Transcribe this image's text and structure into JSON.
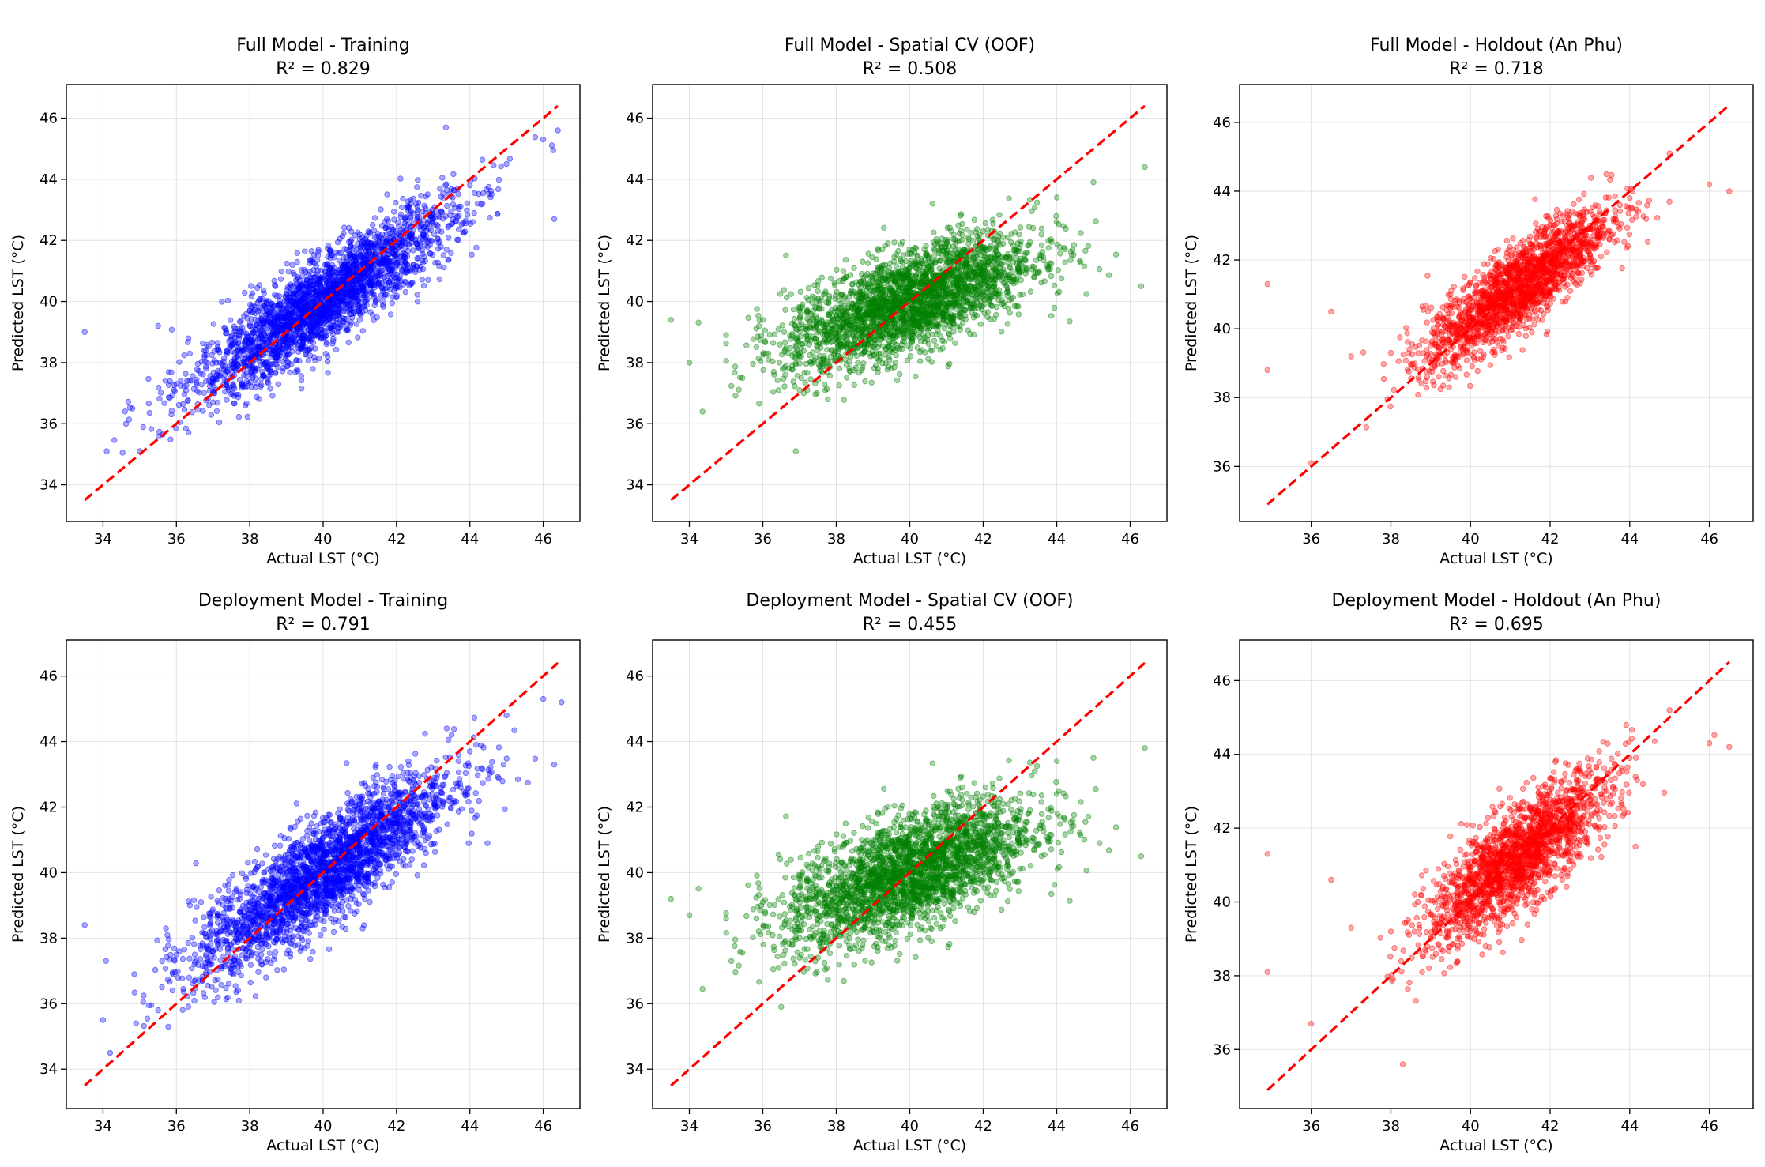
{
  "figure": {
    "rows": 2,
    "cols": 3
  },
  "chart_data": [
    {
      "type": "scatter",
      "title": "Full Model - Training",
      "subtitle": "R² = 0.829",
      "r2": 0.829,
      "xlabel": "Actual LST (°C)",
      "ylabel": "Predicted LST (°C)",
      "xlim": [
        33.0,
        47.0
      ],
      "ylim": [
        32.8,
        47.1
      ],
      "xticks": [
        34,
        36,
        38,
        40,
        42,
        44,
        46
      ],
      "yticks": [
        34,
        36,
        38,
        40,
        42,
        44,
        46
      ],
      "grid": true,
      "color": "#0000ff",
      "reference_line": {
        "label": "1:1",
        "color": "#ff0000",
        "x": [
          33.5,
          46.4
        ],
        "y": [
          33.5,
          46.4
        ]
      },
      "points_sample": [
        [
          33.5,
          39.0
        ],
        [
          34.1,
          35.1
        ],
        [
          34.6,
          36.4
        ],
        [
          35.0,
          35.1
        ],
        [
          35.5,
          39.2
        ],
        [
          36.0,
          37.3
        ],
        [
          37.0,
          36.7
        ],
        [
          38.0,
          38.4
        ],
        [
          39.0,
          39.2
        ],
        [
          40.0,
          40.0
        ],
        [
          41.0,
          40.7
        ],
        [
          42.0,
          41.4
        ],
        [
          43.0,
          42.7
        ],
        [
          44.0,
          43.8
        ],
        [
          45.0,
          44.5
        ],
        [
          46.0,
          45.3
        ],
        [
          46.3,
          42.7
        ],
        [
          46.4,
          45.6
        ]
      ],
      "n_points_approx": 6000
    },
    {
      "type": "scatter",
      "title": "Full Model - Spatial CV (OOF)",
      "subtitle": "R² = 0.508",
      "r2": 0.508,
      "xlabel": "Actual LST (°C)",
      "ylabel": "Predicted LST (°C)",
      "xlim": [
        33.0,
        47.0
      ],
      "ylim": [
        32.8,
        47.1
      ],
      "xticks": [
        34,
        36,
        38,
        40,
        42,
        44,
        46
      ],
      "yticks": [
        34,
        36,
        38,
        40,
        42,
        44,
        46
      ],
      "grid": true,
      "color": "#008000",
      "reference_line": {
        "label": "1:1",
        "color": "#ff0000",
        "x": [
          33.5,
          46.4
        ],
        "y": [
          33.5,
          46.4
        ]
      },
      "points_sample": [
        [
          33.5,
          39.4
        ],
        [
          34.0,
          38.0
        ],
        [
          35.0,
          38.9
        ],
        [
          36.0,
          39.4
        ],
        [
          36.9,
          35.1
        ],
        [
          37.0,
          37.1
        ],
        [
          38.0,
          39.2
        ],
        [
          39.0,
          39.7
        ],
        [
          40.0,
          40.1
        ],
        [
          41.0,
          40.5
        ],
        [
          42.0,
          41.0
        ],
        [
          43.0,
          41.4
        ],
        [
          44.0,
          42.6
        ],
        [
          45.0,
          43.9
        ],
        [
          46.3,
          40.5
        ],
        [
          46.4,
          44.4
        ]
      ],
      "n_points_approx": 6000
    },
    {
      "type": "scatter",
      "title": "Full Model - Holdout (An Phu)",
      "subtitle": "R² = 0.718",
      "r2": 0.718,
      "xlabel": "Actual LST (°C)",
      "ylabel": "Predicted LST (°C)",
      "xlim": [
        34.2,
        47.1
      ],
      "ylim": [
        34.4,
        47.1
      ],
      "xticks": [
        36,
        38,
        40,
        42,
        44,
        46
      ],
      "yticks": [
        36,
        38,
        40,
        42,
        44,
        46
      ],
      "grid": true,
      "color": "#ff0000",
      "reference_line": {
        "label": "1:1",
        "color": "#ff0000",
        "x": [
          34.9,
          46.5
        ],
        "y": [
          34.9,
          46.5
        ]
      },
      "points_sample": [
        [
          34.9,
          41.3
        ],
        [
          34.9,
          38.8
        ],
        [
          36.0,
          36.1
        ],
        [
          36.5,
          40.5
        ],
        [
          37.0,
          39.2
        ],
        [
          38.0,
          39.3
        ],
        [
          39.0,
          39.0
        ],
        [
          40.0,
          40.0
        ],
        [
          41.0,
          40.9
        ],
        [
          42.0,
          41.9
        ],
        [
          43.0,
          42.9
        ],
        [
          44.0,
          43.8
        ],
        [
          45.0,
          45.1
        ],
        [
          46.0,
          44.2
        ],
        [
          46.5,
          44.0
        ]
      ],
      "n_points_approx": 3500
    },
    {
      "type": "scatter",
      "title": "Deployment Model - Training",
      "subtitle": "R² = 0.791",
      "r2": 0.791,
      "xlabel": "Actual LST (°C)",
      "ylabel": "Predicted LST (°C)",
      "xlim": [
        33.0,
        47.0
      ],
      "ylim": [
        32.8,
        47.1
      ],
      "xticks": [
        34,
        36,
        38,
        40,
        42,
        44,
        46
      ],
      "yticks": [
        34,
        36,
        38,
        40,
        42,
        44,
        46
      ],
      "grid": true,
      "color": "#0000ff",
      "reference_line": {
        "label": "1:1",
        "color": "#ff0000",
        "x": [
          33.5,
          46.4
        ],
        "y": [
          33.5,
          46.4
        ]
      },
      "points_sample": [
        [
          33.5,
          38.4
        ],
        [
          34.0,
          35.5
        ],
        [
          34.9,
          35.4
        ],
        [
          35.5,
          35.8
        ],
        [
          36.0,
          37.5
        ],
        [
          37.0,
          37.6
        ],
        [
          38.0,
          38.6
        ],
        [
          39.0,
          39.4
        ],
        [
          40.0,
          40.1
        ],
        [
          41.0,
          40.8
        ],
        [
          42.0,
          41.5
        ],
        [
          43.0,
          42.8
        ],
        [
          44.0,
          43.7
        ],
        [
          45.0,
          44.8
        ],
        [
          46.0,
          45.3
        ],
        [
          46.3,
          43.3
        ],
        [
          46.5,
          45.2
        ]
      ],
      "n_points_approx": 6000
    },
    {
      "type": "scatter",
      "title": "Deployment Model - Spatial CV (OOF)",
      "subtitle": "R² = 0.455",
      "r2": 0.455,
      "xlabel": "Actual LST (°C)",
      "ylabel": "Predicted LST (°C)",
      "xlim": [
        33.0,
        47.0
      ],
      "ylim": [
        32.8,
        47.1
      ],
      "xticks": [
        34,
        36,
        38,
        40,
        42,
        44,
        46
      ],
      "yticks": [
        34,
        36,
        38,
        40,
        42,
        44,
        46
      ],
      "grid": true,
      "color": "#008000",
      "reference_line": {
        "label": "1:1",
        "color": "#ff0000",
        "x": [
          33.5,
          46.4
        ],
        "y": [
          33.5,
          46.4
        ]
      },
      "points_sample": [
        [
          33.5,
          39.2
        ],
        [
          34.0,
          38.7
        ],
        [
          35.0,
          38.6
        ],
        [
          36.0,
          39.1
        ],
        [
          36.5,
          35.9
        ],
        [
          37.0,
          37.4
        ],
        [
          38.0,
          39.1
        ],
        [
          39.0,
          39.6
        ],
        [
          40.0,
          40.0
        ],
        [
          41.0,
          40.4
        ],
        [
          42.0,
          40.9
        ],
        [
          43.0,
          41.3
        ],
        [
          44.0,
          42.4
        ],
        [
          45.0,
          43.5
        ],
        [
          46.3,
          40.5
        ],
        [
          46.4,
          43.8
        ]
      ],
      "n_points_approx": 6000
    },
    {
      "type": "scatter",
      "title": "Deployment Model - Holdout (An Phu)",
      "subtitle": "R² = 0.695",
      "r2": 0.695,
      "xlabel": "Actual LST (°C)",
      "ylabel": "Predicted LST (°C)",
      "xlim": [
        34.2,
        47.1
      ],
      "ylim": [
        34.4,
        47.1
      ],
      "xticks": [
        36,
        38,
        40,
        42,
        44,
        46
      ],
      "yticks": [
        36,
        38,
        40,
        42,
        44,
        46
      ],
      "grid": true,
      "color": "#ff0000",
      "reference_line": {
        "label": "1:1",
        "color": "#ff0000",
        "x": [
          34.9,
          46.5
        ],
        "y": [
          34.9,
          46.5
        ]
      },
      "points_sample": [
        [
          34.9,
          41.3
        ],
        [
          34.9,
          38.1
        ],
        [
          36.0,
          36.7
        ],
        [
          36.5,
          40.6
        ],
        [
          37.0,
          39.3
        ],
        [
          38.0,
          39.2
        ],
        [
          38.3,
          35.6
        ],
        [
          39.0,
          39.0
        ],
        [
          40.0,
          40.0
        ],
        [
          41.0,
          40.9
        ],
        [
          42.0,
          41.9
        ],
        [
          43.0,
          42.9
        ],
        [
          44.0,
          43.9
        ],
        [
          45.0,
          45.2
        ],
        [
          46.0,
          44.3
        ],
        [
          46.5,
          44.2
        ]
      ],
      "n_points_approx": 3500
    }
  ]
}
